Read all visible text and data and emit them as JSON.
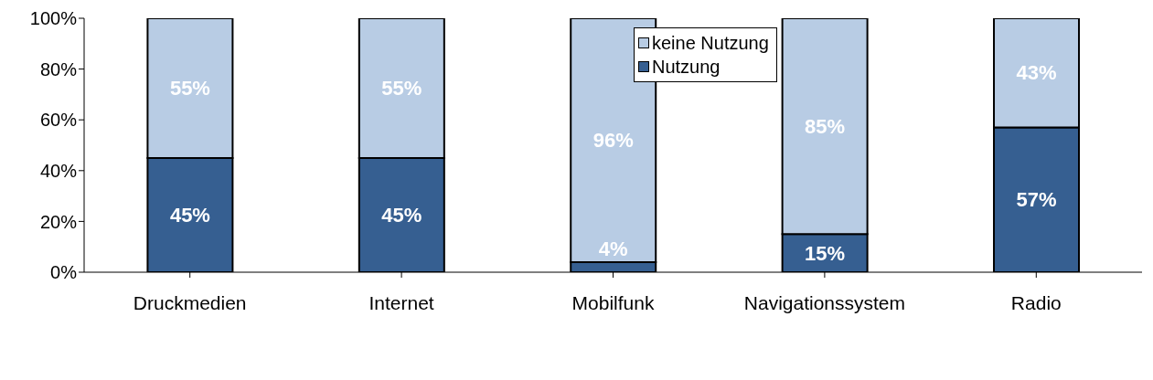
{
  "chart_data": {
    "type": "bar",
    "stacked": true,
    "categories": [
      "Druckmedien",
      "Internet",
      "Mobilfunk",
      "Navigationssystem",
      "Radio"
    ],
    "series": [
      {
        "name": "Nutzung",
        "color": "#365f91",
        "values": [
          45,
          45,
          4,
          15,
          57
        ],
        "value_labels": [
          "45%",
          "45%",
          "4%",
          "15%",
          "57%"
        ]
      },
      {
        "name": "keine Nutzung",
        "color": "#b8cce4",
        "values": [
          55,
          55,
          96,
          85,
          43
        ],
        "value_labels": [
          "55%",
          "55%",
          "96%",
          "85%",
          "43%"
        ]
      }
    ],
    "ylim": [
      0,
      100
    ],
    "yticks": [
      {
        "value": 0,
        "label": "0%"
      },
      {
        "value": 20,
        "label": "20%"
      },
      {
        "value": 40,
        "label": "40%"
      },
      {
        "value": 60,
        "label": "60%"
      },
      {
        "value": 80,
        "label": "80%"
      },
      {
        "value": 100,
        "label": "100%"
      }
    ],
    "grid": false,
    "legend": "top"
  }
}
